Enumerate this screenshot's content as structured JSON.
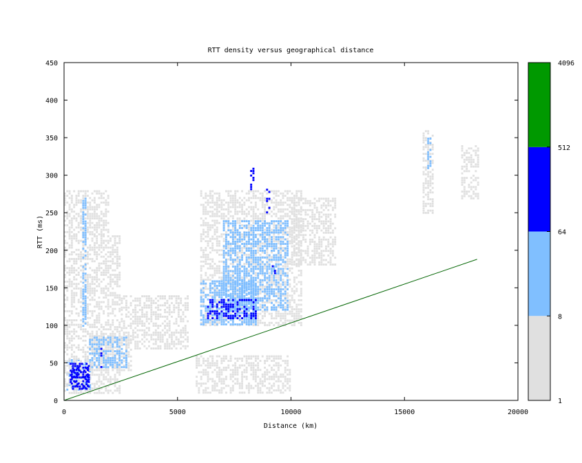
{
  "chart_data": {
    "type": "heatmap",
    "title": "RTT density versus geographical distance",
    "xlabel": "Distance (km)",
    "ylabel": "RTT (ms)",
    "xlim": [
      0,
      20000
    ],
    "ylim": [
      0,
      450
    ],
    "x_ticks": [
      "0",
      "5000",
      "10000",
      "15000",
      "20000"
    ],
    "y_ticks": [
      "0",
      "50",
      "100",
      "150",
      "200",
      "250",
      "300",
      "350",
      "400",
      "450"
    ],
    "grid": false,
    "colorbar": {
      "scale": "log",
      "ticks": [
        "1",
        "8",
        "64",
        "512",
        "4096"
      ],
      "bands": [
        {
          "from": 1,
          "to": 8,
          "color": "#e0e0e0"
        },
        {
          "from": 8,
          "to": 64,
          "color": "#80bfff"
        },
        {
          "from": 64,
          "to": 512,
          "color": "#0000ff"
        },
        {
          "from": 512,
          "to": 4096,
          "color": "#009900"
        }
      ]
    },
    "density_regions": [
      {
        "x": [
          100,
          1200
        ],
        "y": [
          15,
          55
        ],
        "level": "light"
      },
      {
        "x": [
          0,
          2500
        ],
        "y": [
          10,
          220
        ],
        "level": "low"
      },
      {
        "x": [
          250,
          1100
        ],
        "y": [
          15,
          50
        ],
        "level": "mid"
      },
      {
        "x": [
          300,
          1100
        ],
        "y": [
          15,
          45
        ],
        "level": "high"
      },
      {
        "x": [
          1000,
          3000
        ],
        "y": [
          40,
          90
        ],
        "level": "low"
      },
      {
        "x": [
          1100,
          2800
        ],
        "y": [
          45,
          85
        ],
        "level": "light"
      },
      {
        "x": [
          1600,
          1700
        ],
        "y": [
          45,
          70
        ],
        "level": "high"
      },
      {
        "x": [
          2500,
          5500
        ],
        "y": [
          70,
          140
        ],
        "level": "low"
      },
      {
        "x": [
          6000,
          10500
        ],
        "y": [
          100,
          280
        ],
        "level": "low"
      },
      {
        "x": [
          6000,
          8500
        ],
        "y": [
          100,
          160
        ],
        "level": "light"
      },
      {
        "x": [
          7000,
          9900
        ],
        "y": [
          120,
          240
        ],
        "level": "light"
      },
      {
        "x": [
          6300,
          8500
        ],
        "y": [
          110,
          135
        ],
        "level": "high"
      },
      {
        "x": [
          8200,
          8400
        ],
        "y": [
          280,
          310
        ],
        "level": "high"
      },
      {
        "x": [
          8900,
          9050
        ],
        "y": [
          250,
          285
        ],
        "level": "high"
      },
      {
        "x": [
          9150,
          9350
        ],
        "y": [
          165,
          180
        ],
        "level": "high"
      },
      {
        "x": [
          10000,
          12000
        ],
        "y": [
          180,
          270
        ],
        "level": "low"
      },
      {
        "x": [
          15800,
          16300
        ],
        "y": [
          250,
          360
        ],
        "level": "low"
      },
      {
        "x": [
          16000,
          16200
        ],
        "y": [
          310,
          350
        ],
        "level": "light"
      },
      {
        "x": [
          17500,
          18300
        ],
        "y": [
          270,
          340
        ],
        "level": "low"
      },
      {
        "x": [
          5800,
          10000
        ],
        "y": [
          10,
          60
        ],
        "level": "low"
      },
      {
        "x": [
          0,
          2000
        ],
        "y": [
          220,
          280
        ],
        "level": "low"
      },
      {
        "x": [
          800,
          1000
        ],
        "y": [
          100,
          270
        ],
        "level": "light"
      }
    ],
    "reference_line": {
      "label": "",
      "x": [
        0,
        18200
      ],
      "y": [
        0,
        188
      ],
      "color": "#006400"
    }
  }
}
